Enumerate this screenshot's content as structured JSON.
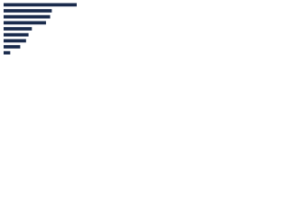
{
  "chart_data": {
    "type": "bar",
    "orientation": "horizontal",
    "categories": [
      null,
      null,
      null,
      null,
      null,
      null,
      null,
      null,
      null
    ],
    "values": [
      88,
      58,
      56,
      51,
      34,
      30,
      27,
      20,
      8
    ],
    "color": "#1a2b4c",
    "xlim": [
      0,
      100
    ]
  }
}
